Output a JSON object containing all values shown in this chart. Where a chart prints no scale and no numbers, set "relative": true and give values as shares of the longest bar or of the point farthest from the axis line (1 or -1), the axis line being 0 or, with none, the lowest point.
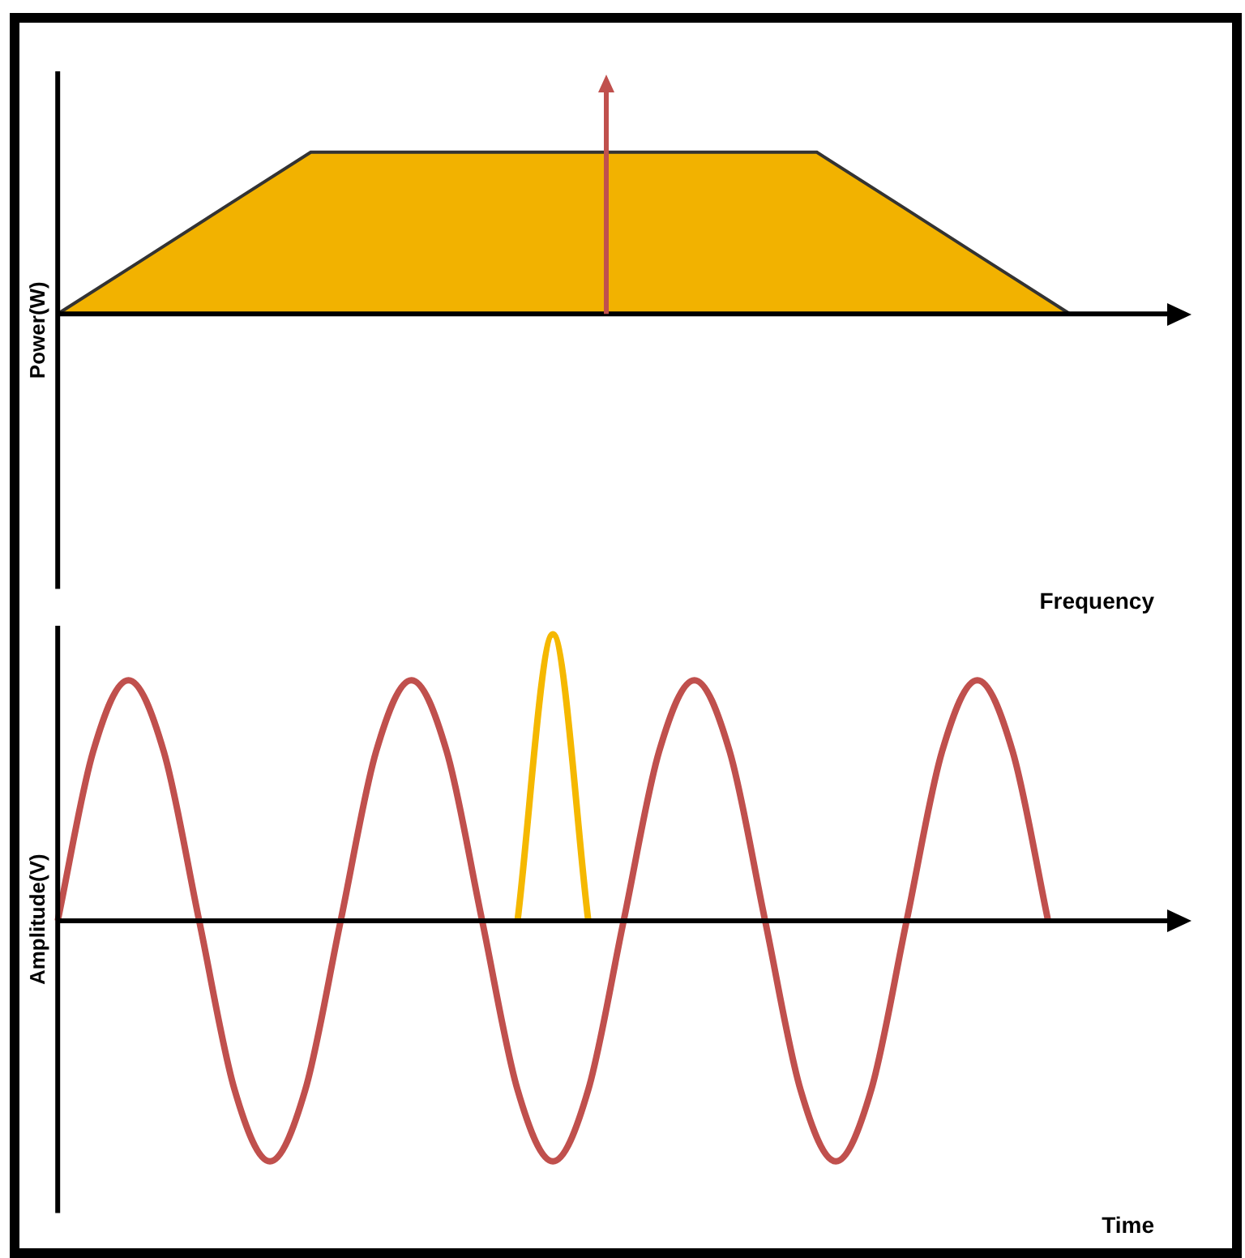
{
  "chart_data": [
    {
      "type": "area",
      "relative": true,
      "xlabel": "Frequency",
      "ylabel": "Power(W)",
      "legend": false,
      "grid": false,
      "categories": [
        null,
        null,
        null,
        null,
        null,
        null,
        null,
        null,
        null,
        null,
        null,
        null,
        null,
        null
      ],
      "series": [
        {
          "color": "#f2b200",
          "values": [
            0,
            0.333,
            0.667,
            1,
            1,
            1,
            1,
            1,
            1,
            1,
            0.667,
            0.333,
            0,
            null
          ]
        }
      ]
    },
    {
      "type": "line",
      "relative": true,
      "xlabel": "Time",
      "ylabel": "Amplitude(V)",
      "legend": false,
      "grid": false,
      "categories": [
        null,
        null,
        null,
        null,
        null,
        null,
        null,
        null,
        null,
        null,
        null,
        null,
        null,
        null,
        null,
        null,
        null,
        null,
        null,
        null,
        null,
        null,
        null,
        null,
        null,
        null,
        null,
        null,
        null,
        null,
        null,
        null
      ],
      "series": [
        {
          "color": "#c0504d",
          "values": [
            0,
            0.59,
            0.84,
            0.59,
            0,
            -0.59,
            -0.84,
            -0.59,
            0,
            0.59,
            0.84,
            0.59,
            0,
            -0.59,
            -0.84,
            -0.59,
            0,
            0.59,
            0.84,
            0.59,
            0,
            -0.59,
            -0.84,
            -0.59,
            0,
            0.59,
            0.84,
            0.59,
            0,
            null,
            null,
            null
          ]
        },
        {
          "color": "#f5b800",
          "values": [
            null,
            null,
            null,
            null,
            null,
            null,
            null,
            null,
            null,
            null,
            null,
            null,
            null,
            0,
            1,
            0,
            null,
            null,
            null,
            null,
            null,
            null,
            null,
            null,
            null,
            null,
            null,
            null,
            null,
            null,
            null,
            null
          ]
        }
      ]
    }
  ]
}
